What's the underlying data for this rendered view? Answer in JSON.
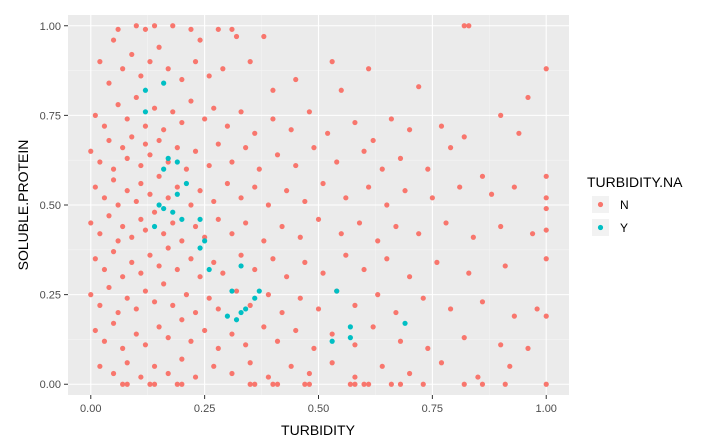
{
  "chart_data": {
    "type": "scatter",
    "title": "",
    "xlabel": "TURBIDITY",
    "ylabel": "SOLUBLE.PROTEIN",
    "xlim": [
      -0.05,
      1.05
    ],
    "ylim": [
      -0.03,
      1.03
    ],
    "x_ticks": [
      0.0,
      0.25,
      0.5,
      0.75,
      1.0
    ],
    "y_ticks": [
      0.0,
      0.25,
      0.5,
      0.75,
      1.0
    ],
    "x_tick_labels": [
      "0.00",
      "0.25",
      "0.50",
      "0.75",
      "1.00"
    ],
    "y_tick_labels": [
      "0.00",
      "0.25",
      "0.50",
      "0.75",
      "1.00"
    ],
    "grid": true,
    "legend": {
      "title": "TURBIDITY.NA",
      "placement": "right"
    },
    "series": [
      {
        "name": "N",
        "color": "#F8766D",
        "points": [
          [
            0.02,
            0.9
          ],
          [
            0.05,
            0.96
          ],
          [
            0.06,
            0.99
          ],
          [
            0.1,
            1.0
          ],
          [
            0.12,
            0.99
          ],
          [
            0.14,
            1.0
          ],
          [
            0.18,
            1.0
          ],
          [
            0.22,
            0.99
          ],
          [
            0.24,
            0.96
          ],
          [
            0.28,
            0.99
          ],
          [
            0.31,
            0.99
          ],
          [
            0.82,
            1.0
          ],
          [
            0.83,
            1.0
          ],
          [
            0.32,
            0.97
          ],
          [
            0.38,
            0.97
          ],
          [
            0.04,
            0.84
          ],
          [
            0.07,
            0.88
          ],
          [
            0.09,
            0.92
          ],
          [
            0.11,
            0.86
          ],
          [
            0.13,
            0.9
          ],
          [
            0.15,
            0.94
          ],
          [
            0.17,
            0.88
          ],
          [
            0.2,
            0.85
          ],
          [
            0.23,
            0.9
          ],
          [
            0.26,
            0.86
          ],
          [
            0.29,
            0.88
          ],
          [
            0.35,
            0.9
          ],
          [
            0.4,
            0.82
          ],
          [
            0.45,
            0.85
          ],
          [
            0.53,
            0.9
          ],
          [
            0.55,
            0.82
          ],
          [
            0.61,
            0.88
          ],
          [
            0.72,
            0.83
          ],
          [
            1.0,
            0.88
          ],
          [
            0.96,
            0.8
          ],
          [
            0.01,
            0.75
          ],
          [
            0.03,
            0.72
          ],
          [
            0.06,
            0.78
          ],
          [
            0.08,
            0.74
          ],
          [
            0.1,
            0.8
          ],
          [
            0.12,
            0.72
          ],
          [
            0.14,
            0.77
          ],
          [
            0.16,
            0.71
          ],
          [
            0.18,
            0.76
          ],
          [
            0.2,
            0.73
          ],
          [
            0.22,
            0.79
          ],
          [
            0.25,
            0.74
          ],
          [
            0.27,
            0.77
          ],
          [
            0.3,
            0.72
          ],
          [
            0.33,
            0.76
          ],
          [
            0.36,
            0.7
          ],
          [
            0.4,
            0.74
          ],
          [
            0.44,
            0.71
          ],
          [
            0.48,
            0.76
          ],
          [
            0.52,
            0.7
          ],
          [
            0.58,
            0.73
          ],
          [
            0.62,
            0.68
          ],
          [
            0.66,
            0.74
          ],
          [
            0.7,
            0.71
          ],
          [
            0.77,
            0.72
          ],
          [
            0.82,
            0.69
          ],
          [
            0.9,
            0.75
          ],
          [
            0.94,
            0.7
          ],
          [
            0.0,
            0.65
          ],
          [
            0.02,
            0.62
          ],
          [
            0.04,
            0.68
          ],
          [
            0.05,
            0.6
          ],
          [
            0.07,
            0.66
          ],
          [
            0.08,
            0.63
          ],
          [
            0.09,
            0.69
          ],
          [
            0.11,
            0.61
          ],
          [
            0.12,
            0.67
          ],
          [
            0.13,
            0.64
          ],
          [
            0.15,
            0.68
          ],
          [
            0.17,
            0.62
          ],
          [
            0.19,
            0.66
          ],
          [
            0.21,
            0.6
          ],
          [
            0.23,
            0.65
          ],
          [
            0.26,
            0.61
          ],
          [
            0.28,
            0.67
          ],
          [
            0.31,
            0.62
          ],
          [
            0.34,
            0.66
          ],
          [
            0.37,
            0.6
          ],
          [
            0.41,
            0.64
          ],
          [
            0.45,
            0.61
          ],
          [
            0.49,
            0.66
          ],
          [
            0.54,
            0.62
          ],
          [
            0.6,
            0.65
          ],
          [
            0.64,
            0.6
          ],
          [
            0.68,
            0.63
          ],
          [
            0.74,
            0.6
          ],
          [
            0.79,
            0.66
          ],
          [
            0.86,
            0.58
          ],
          [
            1.0,
            0.58
          ],
          [
            0.01,
            0.55
          ],
          [
            0.03,
            0.52
          ],
          [
            0.05,
            0.57
          ],
          [
            0.06,
            0.5
          ],
          [
            0.08,
            0.54
          ],
          [
            0.1,
            0.51
          ],
          [
            0.11,
            0.56
          ],
          [
            0.13,
            0.53
          ],
          [
            0.15,
            0.58
          ],
          [
            0.17,
            0.52
          ],
          [
            0.19,
            0.55
          ],
          [
            0.22,
            0.5
          ],
          [
            0.24,
            0.54
          ],
          [
            0.27,
            0.51
          ],
          [
            0.3,
            0.56
          ],
          [
            0.33,
            0.52
          ],
          [
            0.36,
            0.55
          ],
          [
            0.39,
            0.5
          ],
          [
            0.43,
            0.54
          ],
          [
            0.47,
            0.51
          ],
          [
            0.51,
            0.56
          ],
          [
            0.56,
            0.52
          ],
          [
            0.61,
            0.55
          ],
          [
            0.65,
            0.5
          ],
          [
            0.69,
            0.54
          ],
          [
            0.75,
            0.52
          ],
          [
            0.81,
            0.55
          ],
          [
            0.88,
            0.53
          ],
          [
            0.93,
            0.55
          ],
          [
            1.0,
            0.52
          ],
          [
            1.0,
            0.49
          ],
          [
            0.0,
            0.45
          ],
          [
            0.02,
            0.42
          ],
          [
            0.04,
            0.47
          ],
          [
            0.06,
            0.4
          ],
          [
            0.07,
            0.44
          ],
          [
            0.09,
            0.41
          ],
          [
            0.11,
            0.46
          ],
          [
            0.12,
            0.43
          ],
          [
            0.14,
            0.48
          ],
          [
            0.16,
            0.42
          ],
          [
            0.18,
            0.45
          ],
          [
            0.2,
            0.4
          ],
          [
            0.23,
            0.44
          ],
          [
            0.25,
            0.41
          ],
          [
            0.28,
            0.46
          ],
          [
            0.31,
            0.42
          ],
          [
            0.34,
            0.45
          ],
          [
            0.38,
            0.4
          ],
          [
            0.42,
            0.44
          ],
          [
            0.46,
            0.41
          ],
          [
            0.5,
            0.46
          ],
          [
            0.55,
            0.42
          ],
          [
            0.59,
            0.45
          ],
          [
            0.63,
            0.4
          ],
          [
            0.67,
            0.44
          ],
          [
            0.72,
            0.42
          ],
          [
            0.78,
            0.45
          ],
          [
            0.84,
            0.41
          ],
          [
            0.9,
            0.44
          ],
          [
            0.97,
            0.42
          ],
          [
            1.0,
            0.43
          ],
          [
            0.01,
            0.35
          ],
          [
            0.03,
            0.32
          ],
          [
            0.05,
            0.37
          ],
          [
            0.07,
            0.3
          ],
          [
            0.09,
            0.34
          ],
          [
            0.11,
            0.31
          ],
          [
            0.13,
            0.36
          ],
          [
            0.15,
            0.33
          ],
          [
            0.17,
            0.38
          ],
          [
            0.19,
            0.32
          ],
          [
            0.22,
            0.35
          ],
          [
            0.24,
            0.3
          ],
          [
            0.27,
            0.34
          ],
          [
            0.29,
            0.31
          ],
          [
            0.33,
            0.36
          ],
          [
            0.36,
            0.32
          ],
          [
            0.4,
            0.35
          ],
          [
            0.43,
            0.3
          ],
          [
            0.47,
            0.34
          ],
          [
            0.51,
            0.31
          ],
          [
            0.56,
            0.36
          ],
          [
            0.6,
            0.32
          ],
          [
            0.65,
            0.35
          ],
          [
            0.7,
            0.3
          ],
          [
            0.76,
            0.34
          ],
          [
            0.83,
            0.31
          ],
          [
            0.91,
            0.33
          ],
          [
            1.0,
            0.35
          ],
          [
            0.0,
            0.25
          ],
          [
            0.02,
            0.22
          ],
          [
            0.04,
            0.27
          ],
          [
            0.06,
            0.2
          ],
          [
            0.08,
            0.24
          ],
          [
            0.1,
            0.21
          ],
          [
            0.12,
            0.26
          ],
          [
            0.14,
            0.23
          ],
          [
            0.16,
            0.28
          ],
          [
            0.18,
            0.22
          ],
          [
            0.21,
            0.25
          ],
          [
            0.23,
            0.2
          ],
          [
            0.26,
            0.24
          ],
          [
            0.28,
            0.21
          ],
          [
            0.32,
            0.26
          ],
          [
            0.35,
            0.22
          ],
          [
            0.39,
            0.25
          ],
          [
            0.42,
            0.2
          ],
          [
            0.46,
            0.24
          ],
          [
            0.5,
            0.21
          ],
          [
            0.54,
            0.26
          ],
          [
            0.58,
            0.22
          ],
          [
            0.63,
            0.25
          ],
          [
            0.67,
            0.2
          ],
          [
            0.73,
            0.24
          ],
          [
            0.79,
            0.21
          ],
          [
            0.86,
            0.23
          ],
          [
            0.93,
            0.19
          ],
          [
            0.98,
            0.21
          ],
          [
            1.0,
            0.19
          ],
          [
            0.01,
            0.15
          ],
          [
            0.03,
            0.12
          ],
          [
            0.05,
            0.17
          ],
          [
            0.07,
            0.1
          ],
          [
            0.1,
            0.14
          ],
          [
            0.12,
            0.11
          ],
          [
            0.15,
            0.16
          ],
          [
            0.17,
            0.13
          ],
          [
            0.2,
            0.18
          ],
          [
            0.22,
            0.12
          ],
          [
            0.25,
            0.15
          ],
          [
            0.28,
            0.1
          ],
          [
            0.31,
            0.14
          ],
          [
            0.34,
            0.11
          ],
          [
            0.38,
            0.16
          ],
          [
            0.41,
            0.12
          ],
          [
            0.45,
            0.15
          ],
          [
            0.49,
            0.1
          ],
          [
            0.53,
            0.14
          ],
          [
            0.58,
            0.11
          ],
          [
            0.62,
            0.16
          ],
          [
            0.68,
            0.12
          ],
          [
            0.74,
            0.1
          ],
          [
            0.82,
            0.13
          ],
          [
            0.9,
            0.11
          ],
          [
            0.96,
            0.1
          ],
          [
            0.02,
            0.05
          ],
          [
            0.05,
            0.03
          ],
          [
            0.08,
            0.06
          ],
          [
            0.11,
            0.02
          ],
          [
            0.14,
            0.05
          ],
          [
            0.17,
            0.03
          ],
          [
            0.2,
            0.07
          ],
          [
            0.23,
            0.02
          ],
          [
            0.27,
            0.05
          ],
          [
            0.31,
            0.03
          ],
          [
            0.35,
            0.06
          ],
          [
            0.39,
            0.02
          ],
          [
            0.44,
            0.05
          ],
          [
            0.48,
            0.03
          ],
          [
            0.53,
            0.06
          ],
          [
            0.58,
            0.02
          ],
          [
            0.64,
            0.05
          ],
          [
            0.7,
            0.03
          ],
          [
            0.77,
            0.06
          ],
          [
            0.85,
            0.02
          ],
          [
            0.92,
            0.05
          ],
          [
            0.07,
            0.0
          ],
          [
            0.08,
            0.0
          ],
          [
            0.13,
            0.0
          ],
          [
            0.14,
            0.0
          ],
          [
            0.19,
            0.0
          ],
          [
            0.2,
            0.0
          ],
          [
            0.35,
            0.0
          ],
          [
            0.36,
            0.0
          ],
          [
            0.4,
            0.0
          ],
          [
            0.41,
            0.0
          ],
          [
            0.47,
            0.0
          ],
          [
            0.48,
            0.0
          ],
          [
            0.57,
            0.0
          ],
          [
            0.58,
            0.0
          ],
          [
            0.6,
            0.0
          ],
          [
            0.61,
            0.0
          ],
          [
            0.66,
            0.0
          ],
          [
            0.68,
            0.0
          ],
          [
            0.73,
            0.0
          ],
          [
            0.82,
            0.0
          ],
          [
            0.86,
            0.0
          ],
          [
            0.91,
            0.0
          ],
          [
            1.0,
            0.0
          ]
        ]
      },
      {
        "name": "Y",
        "color": "#00BFC4",
        "points": [
          [
            0.12,
            0.82
          ],
          [
            0.16,
            0.84
          ],
          [
            0.12,
            0.76
          ],
          [
            0.17,
            0.63
          ],
          [
            0.19,
            0.62
          ],
          [
            0.16,
            0.6
          ],
          [
            0.21,
            0.56
          ],
          [
            0.15,
            0.5
          ],
          [
            0.19,
            0.53
          ],
          [
            0.16,
            0.49
          ],
          [
            0.18,
            0.48
          ],
          [
            0.2,
            0.46
          ],
          [
            0.14,
            0.44
          ],
          [
            0.24,
            0.46
          ],
          [
            0.25,
            0.4
          ],
          [
            0.24,
            0.38
          ],
          [
            0.33,
            0.33
          ],
          [
            0.26,
            0.32
          ],
          [
            0.37,
            0.26
          ],
          [
            0.36,
            0.24
          ],
          [
            0.31,
            0.26
          ],
          [
            0.3,
            0.19
          ],
          [
            0.32,
            0.18
          ],
          [
            0.33,
            0.2
          ],
          [
            0.34,
            0.21
          ],
          [
            0.54,
            0.26
          ],
          [
            0.53,
            0.12
          ],
          [
            0.57,
            0.16
          ],
          [
            0.57,
            0.13
          ],
          [
            0.69,
            0.17
          ]
        ]
      }
    ]
  }
}
